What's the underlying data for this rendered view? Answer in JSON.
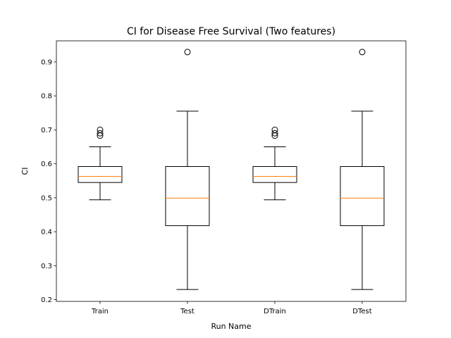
{
  "chart_data": {
    "type": "box",
    "title": "CI for Disease Free Survival (Two features)",
    "xlabel": "Run Name",
    "ylabel": "CI",
    "ylim": [
      0.195,
      0.962
    ],
    "yticks": [
      "0.2",
      "0.3",
      "0.4",
      "0.5",
      "0.6",
      "0.7",
      "0.8",
      "0.9"
    ],
    "grid": false,
    "categories": [
      "Train",
      "Test",
      "DTrain",
      "DTest"
    ],
    "boxes": [
      {
        "name": "Train",
        "whisker_low": 0.494,
        "q1": 0.545,
        "median": 0.563,
        "q3": 0.592,
        "whisker_high": 0.65,
        "outliers": [
          0.683,
          0.69,
          0.7
        ]
      },
      {
        "name": "Test",
        "whisker_low": 0.23,
        "q1": 0.418,
        "median": 0.499,
        "q3": 0.592,
        "whisker_high": 0.755,
        "outliers": [
          0.929
        ]
      },
      {
        "name": "DTrain",
        "whisker_low": 0.494,
        "q1": 0.545,
        "median": 0.563,
        "q3": 0.592,
        "whisker_high": 0.65,
        "outliers": [
          0.683,
          0.69,
          0.7
        ]
      },
      {
        "name": "DTest",
        "whisker_low": 0.23,
        "q1": 0.418,
        "median": 0.499,
        "q3": 0.592,
        "whisker_high": 0.755,
        "outliers": [
          0.929
        ]
      }
    ],
    "colors": {
      "box": "#000000",
      "median": "#ff7f0e",
      "outlier": "#000000"
    }
  }
}
